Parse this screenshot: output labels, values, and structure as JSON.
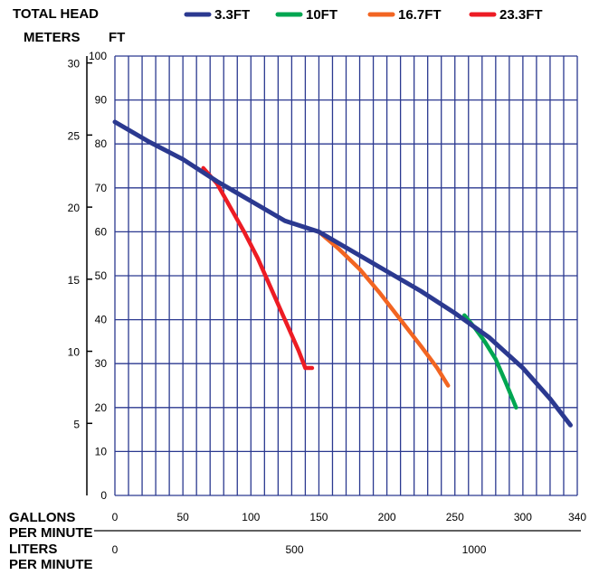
{
  "chart_data": {
    "type": "line",
    "header": {
      "line1": "TOTAL HEAD",
      "line2_meters": "METERS",
      "line2_ft": "FT"
    },
    "x_axis_gpm": {
      "label_line1": "GALLONS",
      "label_line2": "PER MINUTE",
      "range": [
        0,
        340
      ],
      "ticks": [
        0,
        50,
        100,
        150,
        200,
        250,
        300,
        340
      ]
    },
    "x_axis_lpm": {
      "label_line1": "LITERS",
      "label_line2": "PER MINUTE",
      "ticks": [
        0,
        500,
        1000
      ]
    },
    "y_axis_ft": {
      "range": [
        0,
        100
      ],
      "ticks": [
        0,
        10,
        20,
        30,
        40,
        50,
        60,
        70,
        80,
        90,
        100
      ]
    },
    "y_axis_m": {
      "ticks": [
        5,
        10,
        15,
        20,
        25,
        30
      ]
    },
    "grid": true,
    "legend_position": "top",
    "series": [
      {
        "name": "3.3FT",
        "color": "#2b3990",
        "x": [
          0,
          25,
          50,
          75,
          100,
          125,
          150,
          175,
          200,
          225,
          250,
          275,
          300,
          320,
          335
        ],
        "y": [
          85,
          80.5,
          76.5,
          71.5,
          67,
          62.5,
          60,
          55.5,
          51,
          46.5,
          41.5,
          36,
          29,
          22,
          16
        ]
      },
      {
        "name": "10FT",
        "color": "#00a651",
        "x": [
          257,
          265,
          272,
          280,
          287,
          295
        ],
        "y": [
          41,
          38,
          35,
          31,
          26,
          20
        ]
      },
      {
        "name": "16.7FT",
        "color": "#f26522",
        "x": [
          150,
          165,
          180,
          195,
          210,
          225,
          237,
          245
        ],
        "y": [
          60,
          56,
          51.5,
          46,
          40,
          34,
          29,
          25
        ]
      },
      {
        "name": "23.3FT",
        "color": "#ed1c24",
        "x": [
          65,
          75,
          85,
          95,
          105,
          115,
          125,
          135,
          140,
          145
        ],
        "y": [
          74.5,
          71,
          65.5,
          60,
          54,
          47,
          40,
          33,
          29,
          29
        ]
      }
    ]
  }
}
